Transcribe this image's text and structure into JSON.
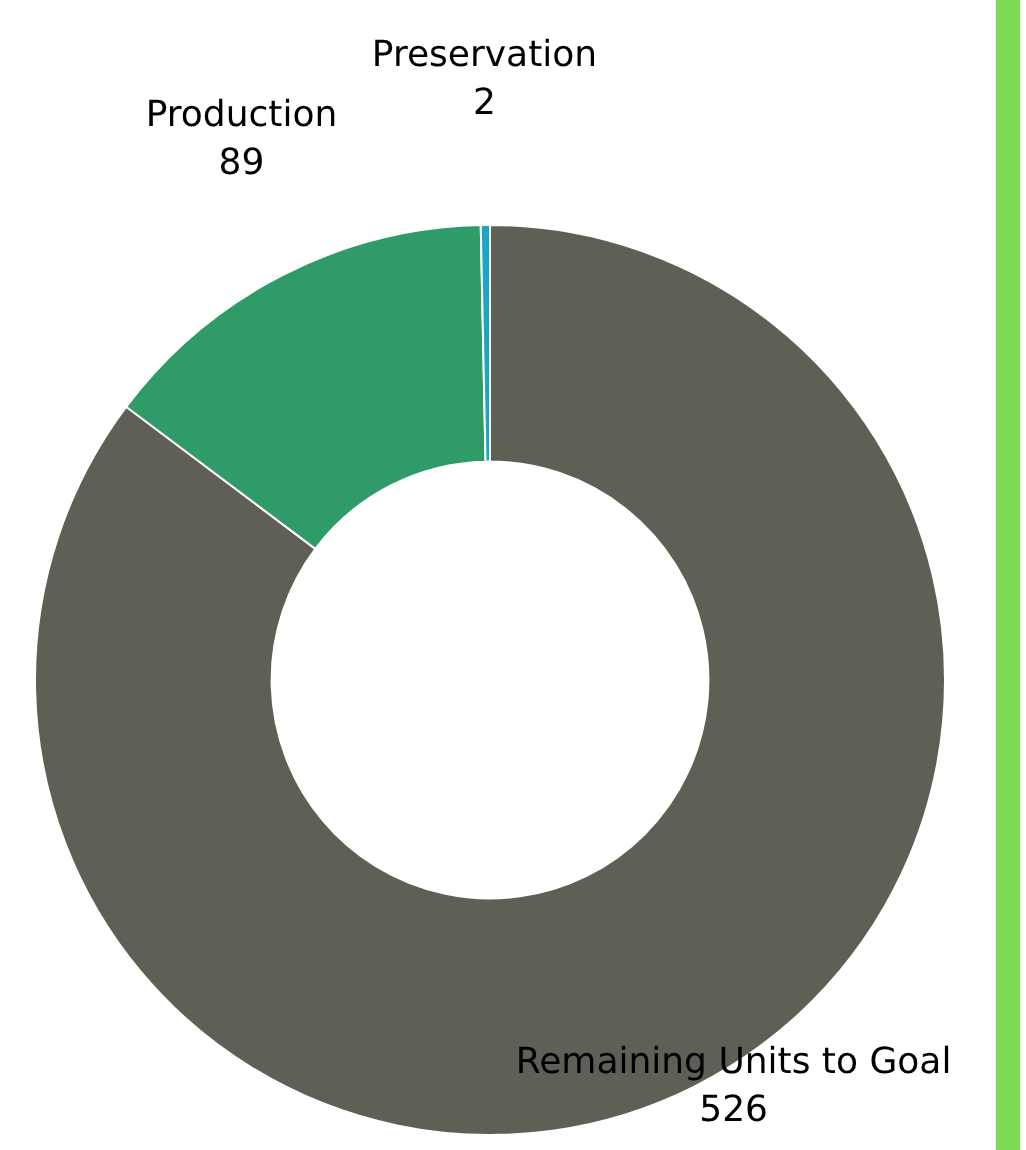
{
  "chart_data": {
    "type": "donut",
    "categories": [
      "Remaining Units to Goal",
      "Production",
      "Preservation"
    ],
    "values": [
      526,
      89,
      2
    ],
    "colors": [
      "#5f5f55",
      "#2e9b69",
      "#1aa6c4"
    ],
    "data_labels": true,
    "legend": false
  }
}
